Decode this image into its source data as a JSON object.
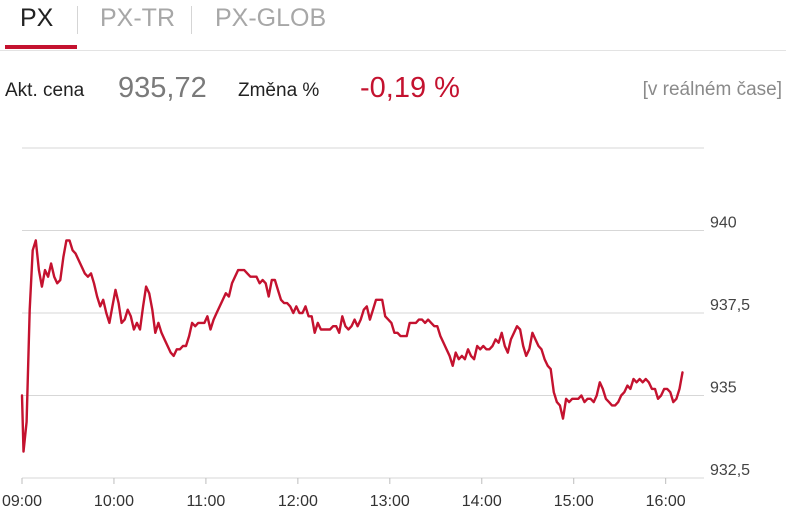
{
  "tabs": [
    {
      "label": "PX",
      "active": true
    },
    {
      "label": "PX-TR",
      "active": false
    },
    {
      "label": "PX-GLOB",
      "active": false
    }
  ],
  "quote": {
    "price_label": "Akt. cena",
    "price_value": "935,72",
    "change_label": "Změna %",
    "change_value": "-0,19 %",
    "realtime_label": "[v reálném čase]"
  },
  "colors": {
    "accent": "#c4122f",
    "grid": "#d7d7d7",
    "muted_text": "#7a7a7a"
  },
  "chart_data": {
    "type": "line",
    "xlabel": "",
    "ylabel": "",
    "ylim": [
      932.5,
      942.5
    ],
    "xlim": [
      "09:00",
      "16:25"
    ],
    "yticks": [
      {
        "value": 932.5,
        "label": "932,5"
      },
      {
        "value": 935,
        "label": "935"
      },
      {
        "value": 937.5,
        "label": "937,5"
      },
      {
        "value": 940,
        "label": "940"
      }
    ],
    "xticks": [
      "09:00",
      "10:00",
      "11:00",
      "12:00",
      "13:00",
      "14:00",
      "15:00",
      "16:00"
    ],
    "grid": true,
    "series": [
      {
        "color": "#c4122f",
        "points": [
          [
            "09:00",
            935.0
          ],
          [
            "09:01",
            933.3
          ],
          [
            "09:03",
            934.2
          ],
          [
            "09:05",
            937.6
          ],
          [
            "09:07",
            939.4
          ],
          [
            "09:09",
            939.7
          ],
          [
            "09:11",
            938.8
          ],
          [
            "09:13",
            938.3
          ],
          [
            "09:15",
            938.8
          ],
          [
            "09:17",
            938.6
          ],
          [
            "09:19",
            939.0
          ],
          [
            "09:21",
            938.6
          ],
          [
            "09:23",
            938.4
          ],
          [
            "09:25",
            938.5
          ],
          [
            "09:27",
            939.2
          ],
          [
            "09:29",
            939.7
          ],
          [
            "09:31",
            939.7
          ],
          [
            "09:33",
            939.4
          ],
          [
            "09:35",
            939.3
          ],
          [
            "09:38",
            939.0
          ],
          [
            "09:41",
            938.7
          ],
          [
            "09:43",
            938.6
          ],
          [
            "09:45",
            938.7
          ],
          [
            "09:47",
            938.4
          ],
          [
            "09:49",
            938.0
          ],
          [
            "09:51",
            937.7
          ],
          [
            "09:53",
            937.9
          ],
          [
            "09:55",
            937.5
          ],
          [
            "09:57",
            937.2
          ],
          [
            "09:59",
            937.7
          ],
          [
            "10:01",
            938.2
          ],
          [
            "10:03",
            937.8
          ],
          [
            "10:05",
            937.2
          ],
          [
            "10:07",
            937.3
          ],
          [
            "10:09",
            937.6
          ],
          [
            "10:11",
            937.4
          ],
          [
            "10:13",
            937.0
          ],
          [
            "10:15",
            937.2
          ],
          [
            "10:17",
            937.0
          ],
          [
            "10:19",
            937.7
          ],
          [
            "10:21",
            938.3
          ],
          [
            "10:23",
            938.1
          ],
          [
            "10:25",
            937.6
          ],
          [
            "10:27",
            936.9
          ],
          [
            "10:29",
            937.2
          ],
          [
            "10:31",
            936.9
          ],
          [
            "10:33",
            936.7
          ],
          [
            "10:35",
            936.5
          ],
          [
            "10:37",
            936.3
          ],
          [
            "10:39",
            936.2
          ],
          [
            "10:41",
            936.4
          ],
          [
            "10:43",
            936.4
          ],
          [
            "10:45",
            936.5
          ],
          [
            "10:47",
            936.5
          ],
          [
            "10:49",
            936.8
          ],
          [
            "10:51",
            937.2
          ],
          [
            "10:53",
            937.1
          ],
          [
            "10:55",
            937.2
          ],
          [
            "10:57",
            937.2
          ],
          [
            "10:59",
            937.2
          ],
          [
            "11:01",
            937.4
          ],
          [
            "11:03",
            937.0
          ],
          [
            "11:05",
            937.3
          ],
          [
            "11:07",
            937.5
          ],
          [
            "11:09",
            937.7
          ],
          [
            "11:11",
            937.9
          ],
          [
            "11:13",
            938.1
          ],
          [
            "11:15",
            938.0
          ],
          [
            "11:17",
            938.4
          ],
          [
            "11:19",
            938.6
          ],
          [
            "11:21",
            938.8
          ],
          [
            "11:23",
            938.8
          ],
          [
            "11:25",
            938.8
          ],
          [
            "11:27",
            938.7
          ],
          [
            "11:29",
            938.6
          ],
          [
            "11:31",
            938.6
          ],
          [
            "11:33",
            938.6
          ],
          [
            "11:35",
            938.4
          ],
          [
            "11:37",
            938.5
          ],
          [
            "11:39",
            938.4
          ],
          [
            "11:41",
            938.0
          ],
          [
            "11:43",
            938.5
          ],
          [
            "11:45",
            938.5
          ],
          [
            "11:47",
            938.2
          ],
          [
            "11:49",
            937.9
          ],
          [
            "11:51",
            937.8
          ],
          [
            "11:53",
            937.8
          ],
          [
            "11:55",
            937.7
          ],
          [
            "11:57",
            937.5
          ],
          [
            "11:59",
            937.7
          ],
          [
            "12:01",
            937.5
          ],
          [
            "12:03",
            937.5
          ],
          [
            "12:05",
            937.7
          ],
          [
            "12:07",
            937.4
          ],
          [
            "12:09",
            937.4
          ],
          [
            "12:11",
            936.9
          ],
          [
            "12:13",
            937.2
          ],
          [
            "12:15",
            937.0
          ],
          [
            "12:17",
            937.0
          ],
          [
            "12:19",
            937.0
          ],
          [
            "12:21",
            937.0
          ],
          [
            "12:23",
            937.1
          ],
          [
            "12:25",
            937.1
          ],
          [
            "12:27",
            936.9
          ],
          [
            "12:29",
            937.4
          ],
          [
            "12:31",
            937.1
          ],
          [
            "12:33",
            937.0
          ],
          [
            "12:35",
            937.1
          ],
          [
            "12:37",
            937.3
          ],
          [
            "12:39",
            937.1
          ],
          [
            "12:41",
            937.3
          ],
          [
            "12:43",
            937.6
          ],
          [
            "12:45",
            937.7
          ],
          [
            "12:47",
            937.3
          ],
          [
            "12:49",
            937.6
          ],
          [
            "12:51",
            937.9
          ],
          [
            "12:53",
            937.9
          ],
          [
            "12:55",
            937.9
          ],
          [
            "12:57",
            937.4
          ],
          [
            "12:59",
            937.3
          ],
          [
            "13:01",
            937.2
          ],
          [
            "13:03",
            936.9
          ],
          [
            "13:05",
            936.9
          ],
          [
            "13:07",
            936.8
          ],
          [
            "13:09",
            936.8
          ],
          [
            "13:11",
            936.8
          ],
          [
            "13:13",
            937.2
          ],
          [
            "13:15",
            937.2
          ],
          [
            "13:17",
            937.2
          ],
          [
            "13:19",
            937.3
          ],
          [
            "13:21",
            937.3
          ],
          [
            "13:23",
            937.2
          ],
          [
            "13:25",
            937.3
          ],
          [
            "13:27",
            937.2
          ],
          [
            "13:29",
            937.1
          ],
          [
            "13:31",
            937.1
          ],
          [
            "13:33",
            936.8
          ],
          [
            "13:35",
            936.6
          ],
          [
            "13:37",
            936.4
          ],
          [
            "13:39",
            936.2
          ],
          [
            "13:41",
            935.9
          ],
          [
            "13:43",
            936.3
          ],
          [
            "13:45",
            936.1
          ],
          [
            "13:47",
            936.2
          ],
          [
            "13:49",
            936.1
          ],
          [
            "13:51",
            936.4
          ],
          [
            "13:53",
            936.2
          ],
          [
            "13:55",
            936.1
          ],
          [
            "13:57",
            936.5
          ],
          [
            "13:59",
            936.4
          ],
          [
            "14:01",
            936.5
          ],
          [
            "14:03",
            936.4
          ],
          [
            "14:05",
            936.4
          ],
          [
            "14:07",
            936.5
          ],
          [
            "14:09",
            936.7
          ],
          [
            "14:11",
            936.6
          ],
          [
            "14:13",
            936.9
          ],
          [
            "14:15",
            936.5
          ],
          [
            "14:17",
            936.3
          ],
          [
            "14:19",
            936.7
          ],
          [
            "14:21",
            936.9
          ],
          [
            "14:23",
            937.1
          ],
          [
            "14:25",
            937.0
          ],
          [
            "14:27",
            936.5
          ],
          [
            "14:29",
            936.2
          ],
          [
            "14:31",
            936.4
          ],
          [
            "14:33",
            936.9
          ],
          [
            "14:35",
            936.7
          ],
          [
            "14:37",
            936.5
          ],
          [
            "14:39",
            936.4
          ],
          [
            "14:41",
            936.1
          ],
          [
            "14:43",
            935.9
          ],
          [
            "14:45",
            935.8
          ],
          [
            "14:47",
            935.1
          ],
          [
            "14:49",
            934.8
          ],
          [
            "14:51",
            934.7
          ],
          [
            "14:53",
            934.3
          ],
          [
            "14:55",
            934.9
          ],
          [
            "14:57",
            934.8
          ],
          [
            "14:59",
            934.9
          ],
          [
            "15:01",
            934.9
          ],
          [
            "15:03",
            934.9
          ],
          [
            "15:05",
            935.0
          ],
          [
            "15:07",
            934.8
          ],
          [
            "15:09",
            934.9
          ],
          [
            "15:11",
            934.9
          ],
          [
            "15:13",
            934.8
          ],
          [
            "15:15",
            935.0
          ],
          [
            "15:17",
            935.4
          ],
          [
            "15:19",
            935.2
          ],
          [
            "15:21",
            934.9
          ],
          [
            "15:23",
            934.8
          ],
          [
            "15:25",
            934.7
          ],
          [
            "15:27",
            934.7
          ],
          [
            "15:29",
            934.8
          ],
          [
            "15:31",
            935.0
          ],
          [
            "15:33",
            935.1
          ],
          [
            "15:35",
            935.3
          ],
          [
            "15:37",
            935.2
          ],
          [
            "15:39",
            935.5
          ],
          [
            "15:41",
            935.4
          ],
          [
            "15:43",
            935.5
          ],
          [
            "15:45",
            935.4
          ],
          [
            "15:47",
            935.5
          ],
          [
            "15:49",
            935.4
          ],
          [
            "15:51",
            935.2
          ],
          [
            "15:53",
            935.2
          ],
          [
            "15:55",
            934.9
          ],
          [
            "15:57",
            935.0
          ],
          [
            "15:59",
            935.2
          ],
          [
            "16:01",
            935.2
          ],
          [
            "16:03",
            935.1
          ],
          [
            "16:05",
            934.8
          ],
          [
            "16:07",
            934.9
          ],
          [
            "16:09",
            935.2
          ],
          [
            "16:11",
            935.7
          ]
        ]
      }
    ]
  }
}
